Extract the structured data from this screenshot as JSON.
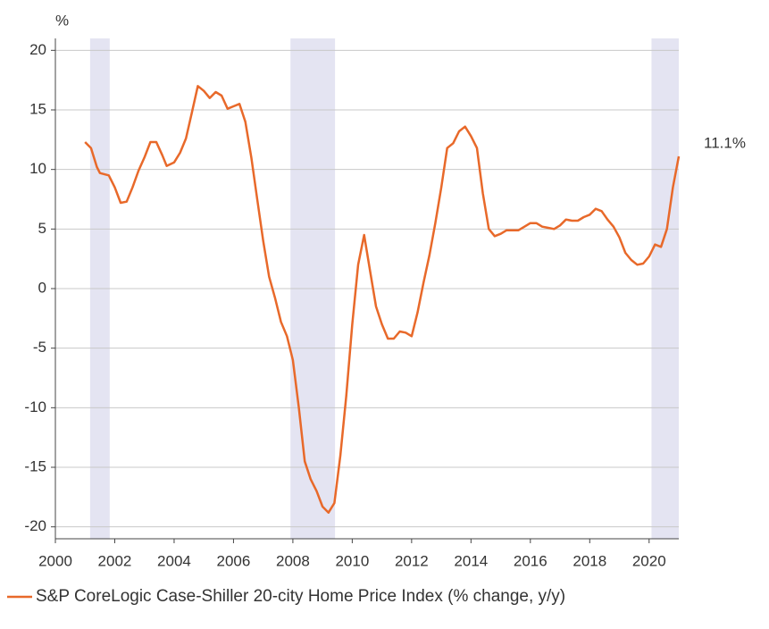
{
  "chart_data": {
    "type": "line",
    "y_label": "%",
    "annotation": "11.1%",
    "xlim": [
      2000,
      2021
    ],
    "ylim": [
      -21,
      21
    ],
    "xticks": [
      2000,
      2002,
      2004,
      2006,
      2008,
      2010,
      2012,
      2014,
      2016,
      2018,
      2020
    ],
    "yticks": [
      -20,
      -15,
      -10,
      -5,
      0,
      5,
      10,
      15,
      20
    ],
    "grid": true,
    "legend": "bottom",
    "shaded_ranges": [
      [
        2001.17,
        2001.83
      ],
      [
        2007.92,
        2009.42
      ],
      [
        2020.08,
        2021
      ]
    ],
    "shade_color": "#e4e4f2",
    "x": [
      2001.0,
      2001.2,
      2001.4,
      2001.5,
      2001.8,
      2002.0,
      2002.2,
      2002.4,
      2002.6,
      2002.8,
      2003.0,
      2003.2,
      2003.4,
      2003.6,
      2003.75,
      2004.0,
      2004.2,
      2004.4,
      2004.6,
      2004.8,
      2005.0,
      2005.2,
      2005.4,
      2005.6,
      2005.8,
      2006.0,
      2006.2,
      2006.4,
      2006.6,
      2006.8,
      2007.0,
      2007.2,
      2007.4,
      2007.6,
      2007.8,
      2008.0,
      2008.2,
      2008.4,
      2008.6,
      2008.8,
      2009.0,
      2009.2,
      2009.4,
      2009.6,
      2009.8,
      2010.0,
      2010.2,
      2010.4,
      2010.6,
      2010.8,
      2011.0,
      2011.2,
      2011.4,
      2011.6,
      2011.8,
      2012.0,
      2012.2,
      2012.4,
      2012.6,
      2012.8,
      2013.0,
      2013.2,
      2013.4,
      2013.6,
      2013.8,
      2014.0,
      2014.2,
      2014.4,
      2014.6,
      2014.8,
      2015.0,
      2015.2,
      2015.4,
      2015.6,
      2015.8,
      2016.0,
      2016.2,
      2016.4,
      2016.6,
      2016.8,
      2017.0,
      2017.2,
      2017.4,
      2017.6,
      2017.8,
      2018.0,
      2018.2,
      2018.4,
      2018.6,
      2018.8,
      2019.0,
      2019.2,
      2019.4,
      2019.6,
      2019.8,
      2020.0,
      2020.2,
      2020.4,
      2020.6,
      2020.8,
      2021.0
    ],
    "series": [
      {
        "name": "S&P CoreLogic Case-Shiller 20-city Home Price Index (% change, y/y)",
        "color": "#e8692a",
        "values": [
          12.3,
          11.8,
          10.2,
          9.7,
          9.5,
          8.5,
          7.2,
          7.3,
          8.5,
          9.9,
          11.0,
          12.3,
          12.3,
          11.2,
          10.3,
          10.6,
          11.4,
          12.6,
          14.8,
          17.0,
          16.6,
          16.0,
          16.5,
          16.2,
          15.1,
          15.3,
          15.5,
          14.0,
          11.0,
          7.5,
          4.0,
          1.0,
          -0.8,
          -2.8,
          -4.0,
          -6.0,
          -10.0,
          -14.5,
          -16.0,
          -17.0,
          -18.3,
          -18.8,
          -18.0,
          -14.0,
          -9.0,
          -3.0,
          2.0,
          4.5,
          1.5,
          -1.5,
          -3.0,
          -4.2,
          -4.2,
          -3.6,
          -3.7,
          -4.0,
          -2.0,
          0.5,
          2.8,
          5.5,
          8.5,
          11.8,
          12.2,
          13.2,
          13.6,
          12.8,
          11.8,
          8.0,
          5.0,
          4.4,
          4.6,
          4.9,
          4.9,
          4.9,
          5.2,
          5.5,
          5.5,
          5.2,
          5.1,
          5.0,
          5.3,
          5.8,
          5.7,
          5.7,
          6.0,
          6.2,
          6.7,
          6.5,
          5.8,
          5.2,
          4.3,
          3.0,
          2.4,
          2.0,
          2.1,
          2.7,
          3.7,
          3.5,
          5.0,
          8.5,
          11.1
        ]
      }
    ]
  }
}
